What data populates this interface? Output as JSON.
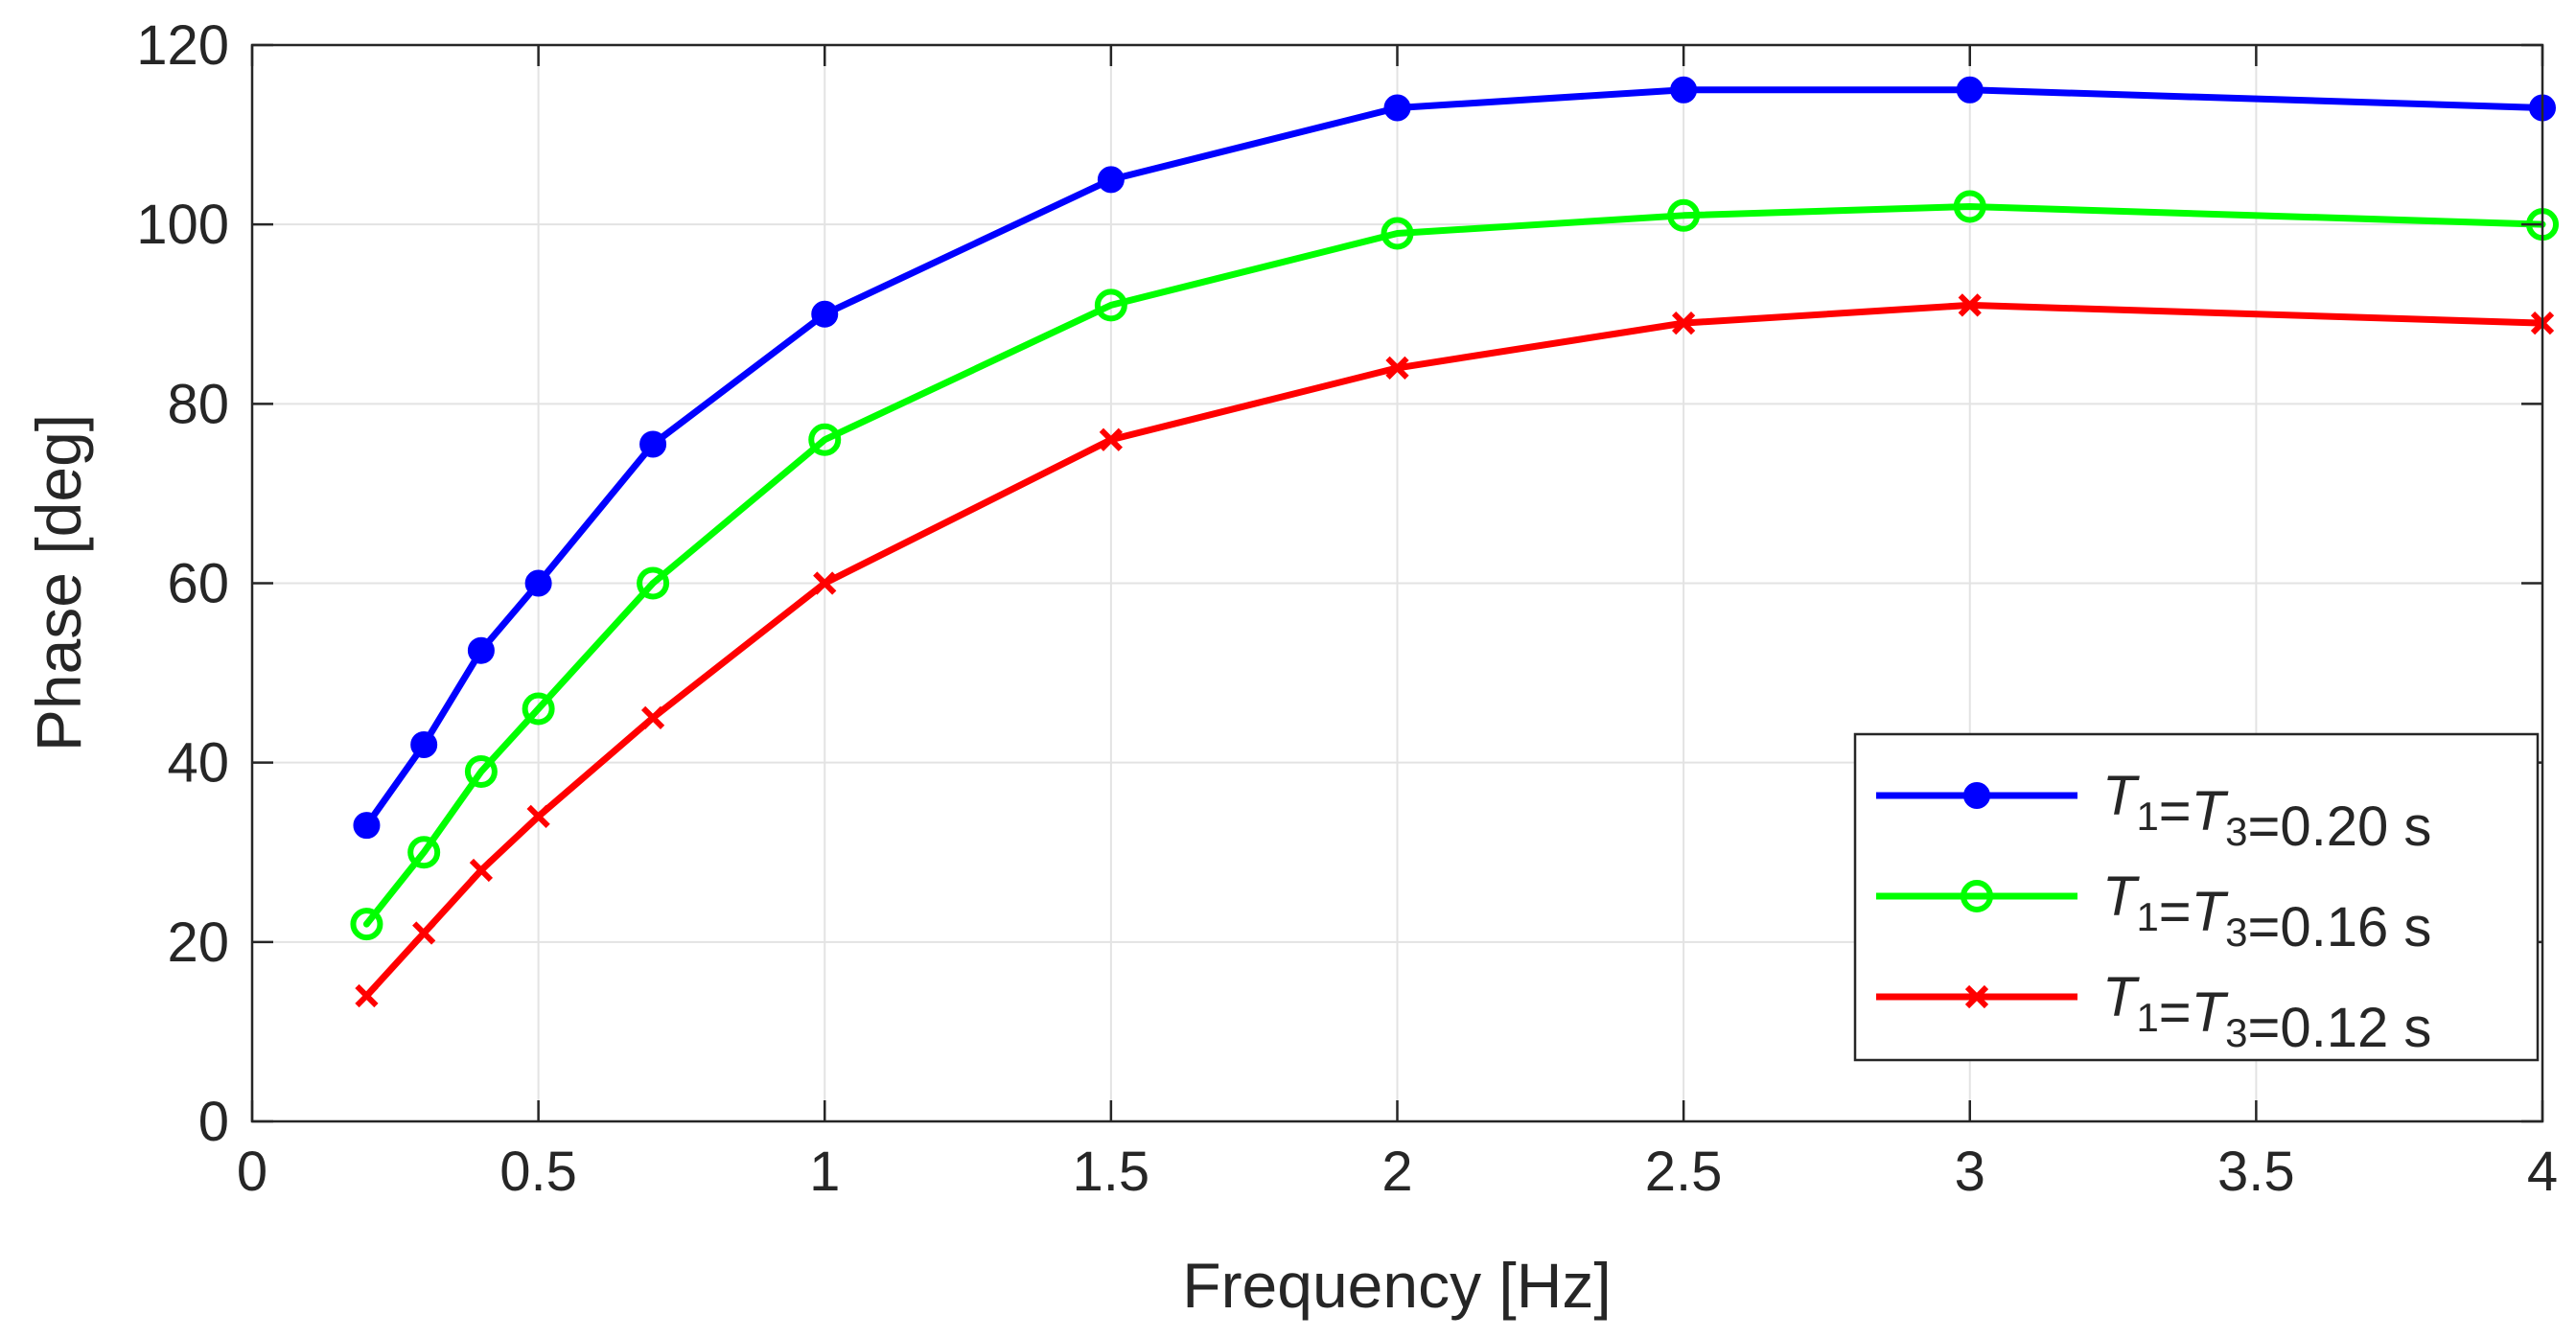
{
  "chart_data": {
    "type": "line",
    "title": "",
    "xlabel": "Frequency [Hz]",
    "ylabel": "Phase [deg]",
    "xlim": [
      0,
      4
    ],
    "ylim": [
      0,
      120
    ],
    "xticks": [
      0,
      0.5,
      1,
      1.5,
      2,
      2.5,
      3,
      3.5,
      4
    ],
    "xtick_labels": [
      "0",
      "0.5",
      "1",
      "1.5",
      "2",
      "2.5",
      "3",
      "3.5",
      "4"
    ],
    "yticks": [
      0,
      20,
      40,
      60,
      80,
      100,
      120
    ],
    "ytick_labels": [
      "0",
      "20",
      "40",
      "60",
      "80",
      "100",
      "120"
    ],
    "grid": true,
    "legend_position": "bottom-right",
    "x": [
      0.2,
      0.3,
      0.4,
      0.5,
      0.7,
      1.0,
      1.5,
      2.0,
      2.5,
      3.0,
      4.0
    ],
    "series": [
      {
        "name": "T1=T3=0.20 s",
        "label_parts": {
          "a": "T",
          "a_sub": "1",
          "eq1": "=",
          "b": "T",
          "b_sub": "3",
          "rest": "=0.20 s"
        },
        "color": "#0000ff",
        "marker": "filled-circle",
        "values": [
          33,
          42,
          52.5,
          60,
          75.5,
          90,
          105,
          113,
          115,
          115,
          113
        ]
      },
      {
        "name": "T1=T3=0.16 s",
        "label_parts": {
          "a": "T",
          "a_sub": "1",
          "eq1": "=",
          "b": "T",
          "b_sub": "3",
          "rest": "=0.16 s"
        },
        "color": "#00ff00",
        "marker": "open-circle",
        "values": [
          22,
          30,
          39,
          46,
          60,
          76,
          91,
          99,
          101,
          102,
          100
        ]
      },
      {
        "name": "T1=T3=0.12 s",
        "label_parts": {
          "a": "T",
          "a_sub": "1",
          "eq1": "=",
          "b": "T",
          "b_sub": "3",
          "rest": "=0.12 s"
        },
        "color": "#ff0000",
        "marker": "x",
        "values": [
          14,
          21,
          28,
          34,
          45,
          60,
          76,
          84,
          89,
          91,
          89
        ]
      }
    ]
  }
}
